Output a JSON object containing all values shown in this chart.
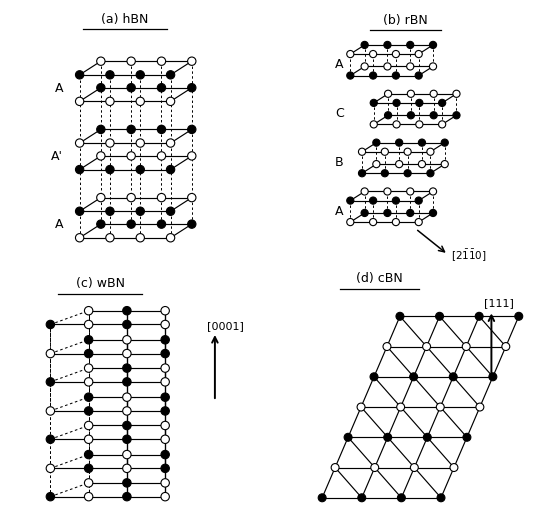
{
  "title_a": "(a) hBN",
  "title_b": "(b) rBN",
  "title_c": "(c) wBN",
  "title_d": "(d) cBN",
  "atom_r": 0.055,
  "fontsize": 9
}
